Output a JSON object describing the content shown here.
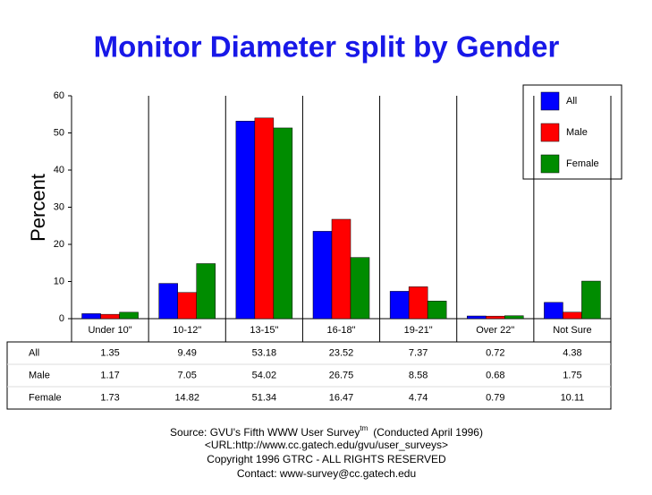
{
  "chart_data": {
    "type": "bar",
    "title": "Monitor Diameter split by Gender",
    "y_label": "Percent",
    "categories": [
      "Under 10\"",
      "10-12\"",
      "13-15\"",
      "16-18\"",
      "19-21\"",
      "Over 22\"",
      "Not Sure"
    ],
    "series": [
      {
        "name": "All",
        "color": "#0000ff",
        "values": [
          1.35,
          9.49,
          53.18,
          23.52,
          7.37,
          0.72,
          4.38
        ]
      },
      {
        "name": "Male",
        "color": "#ff0000",
        "values": [
          1.17,
          7.05,
          54.02,
          26.75,
          8.58,
          0.68,
          1.75
        ]
      },
      {
        "name": "Female",
        "color": "#008c00",
        "values": [
          1.73,
          14.82,
          51.34,
          16.47,
          4.74,
          0.79,
          10.11
        ]
      }
    ],
    "ylim": [
      0,
      60
    ],
    "yticks": [
      0,
      10,
      20,
      30,
      40,
      50,
      60
    ],
    "legend": "top-right",
    "source": "Source: GVU's Fifth WWW User Survey",
    "source_tm": "tm",
    "source_date": "(Conducted April 1996)",
    "url": "<URL:http://www.cc.gatech.edu/gvu/user_surveys>",
    "copyright": "Copyright 1996 GTRC -  ALL RIGHTS RESERVED",
    "contact": "Contact: www-survey@cc.gatech.edu"
  }
}
